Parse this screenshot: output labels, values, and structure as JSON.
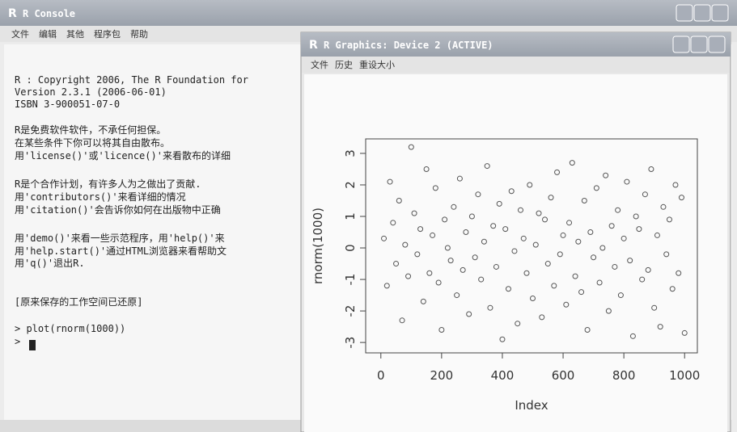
{
  "console": {
    "title": "R Console",
    "menu": [
      "文件",
      "编辑",
      "其他",
      "程序包",
      "帮助"
    ],
    "lines": [
      "R : Copyright 2006, The R Foundation for",
      "Version 2.3.1 (2006-06-01)",
      "ISBN 3-900051-07-0",
      "R是免费软件软件，不承任何担保。",
      "在某些条件下你可以将其自由散布。",
      "用'license()'或'licence()'来看散布的详细",
      "R是个合作计划，有许多人为之做出了贡献.",
      "用'contributors()'来看详细的情况",
      "用'citation()'会告诉你如何在出版物中正确",
      "用'demo()'来看一些示范程序，用'help()'来",
      "用'help.start()'通过HTML浏览器来看帮助文",
      "用'q()'退出R.",
      "[原来保存的工作空间已还原]",
      "> plot(rnorm(1000))",
      ">"
    ]
  },
  "graphics": {
    "title": "R Graphics: Device 2 (ACTIVE)",
    "menu": [
      "文件",
      "历史",
      "重设大小"
    ]
  },
  "chart_data": {
    "type": "scatter",
    "x_label": "Index",
    "y_label": "rnorm(1000)",
    "color": "#555555",
    "x": [
      10,
      20,
      30,
      40,
      50,
      60,
      70,
      80,
      90,
      100,
      110,
      120,
      130,
      140,
      150,
      160,
      170,
      180,
      190,
      200,
      210,
      220,
      230,
      240,
      250,
      260,
      270,
      280,
      290,
      300,
      310,
      320,
      330,
      340,
      350,
      360,
      370,
      380,
      390,
      400,
      410,
      420,
      430,
      440,
      450,
      460,
      470,
      480,
      490,
      500,
      510,
      520,
      530,
      540,
      550,
      560,
      570,
      580,
      590,
      600,
      610,
      620,
      630,
      640,
      650,
      660,
      670,
      680,
      690,
      700,
      710,
      720,
      730,
      740,
      750,
      760,
      770,
      780,
      790,
      800,
      810,
      820,
      830,
      840,
      850,
      860,
      870,
      880,
      890,
      900,
      910,
      920,
      930,
      940,
      950,
      960,
      970,
      980,
      990,
      1000
    ],
    "values": [
      0.3,
      -1.2,
      2.1,
      0.8,
      -0.5,
      1.5,
      -2.3,
      0.1,
      -0.9,
      3.2,
      1.1,
      -0.2,
      0.6,
      -1.7,
      2.5,
      -0.8,
      0.4,
      1.9,
      -1.1,
      -2.6,
      0.9,
      0.0,
      -0.4,
      1.3,
      -1.5,
      2.2,
      -0.7,
      0.5,
      -2.1,
      1.0,
      -0.3,
      1.7,
      -1.0,
      0.2,
      2.6,
      -1.9,
      0.7,
      -0.6,
      1.4,
      -2.9,
      0.6,
      -1.3,
      1.8,
      -0.1,
      -2.4,
      1.2,
      0.3,
      -0.8,
      2.0,
      -1.6,
      0.1,
      1.1,
      -2.2,
      0.9,
      -0.5,
      1.6,
      -1.2,
      2.4,
      -0.2,
      0.4,
      -1.8,
      0.8,
      2.7,
      -0.9,
      0.2,
      -1.4,
      1.5,
      -2.6,
      0.5,
      -0.3,
      1.9,
      -1.1,
      0.0,
      2.3,
      -2.0,
      0.7,
      -0.6,
      1.2,
      -1.5,
      0.3,
      2.1,
      -0.4,
      -2.8,
      1.0,
      0.6,
      -1.0,
      1.7,
      -0.7,
      2.5,
      -1.9,
      0.4,
      -2.5,
      1.3,
      -0.2,
      0.9,
      -1.3,
      2.0,
      -0.8,
      1.6,
      -2.7
    ],
    "xlim": [
      -50,
      1042
    ],
    "ylim": [
      -3.33,
      3.46
    ],
    "xticks": [
      0,
      200,
      400,
      600,
      800,
      1000
    ],
    "yticks": [
      -3,
      -2,
      -1,
      0,
      1,
      2,
      3
    ]
  }
}
